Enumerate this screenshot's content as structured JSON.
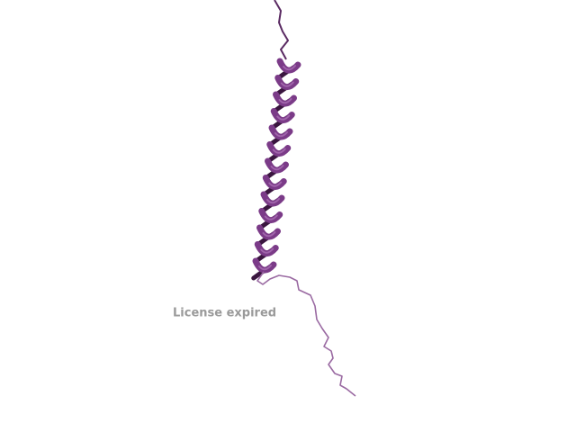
{
  "watermark": "License expired"
}
